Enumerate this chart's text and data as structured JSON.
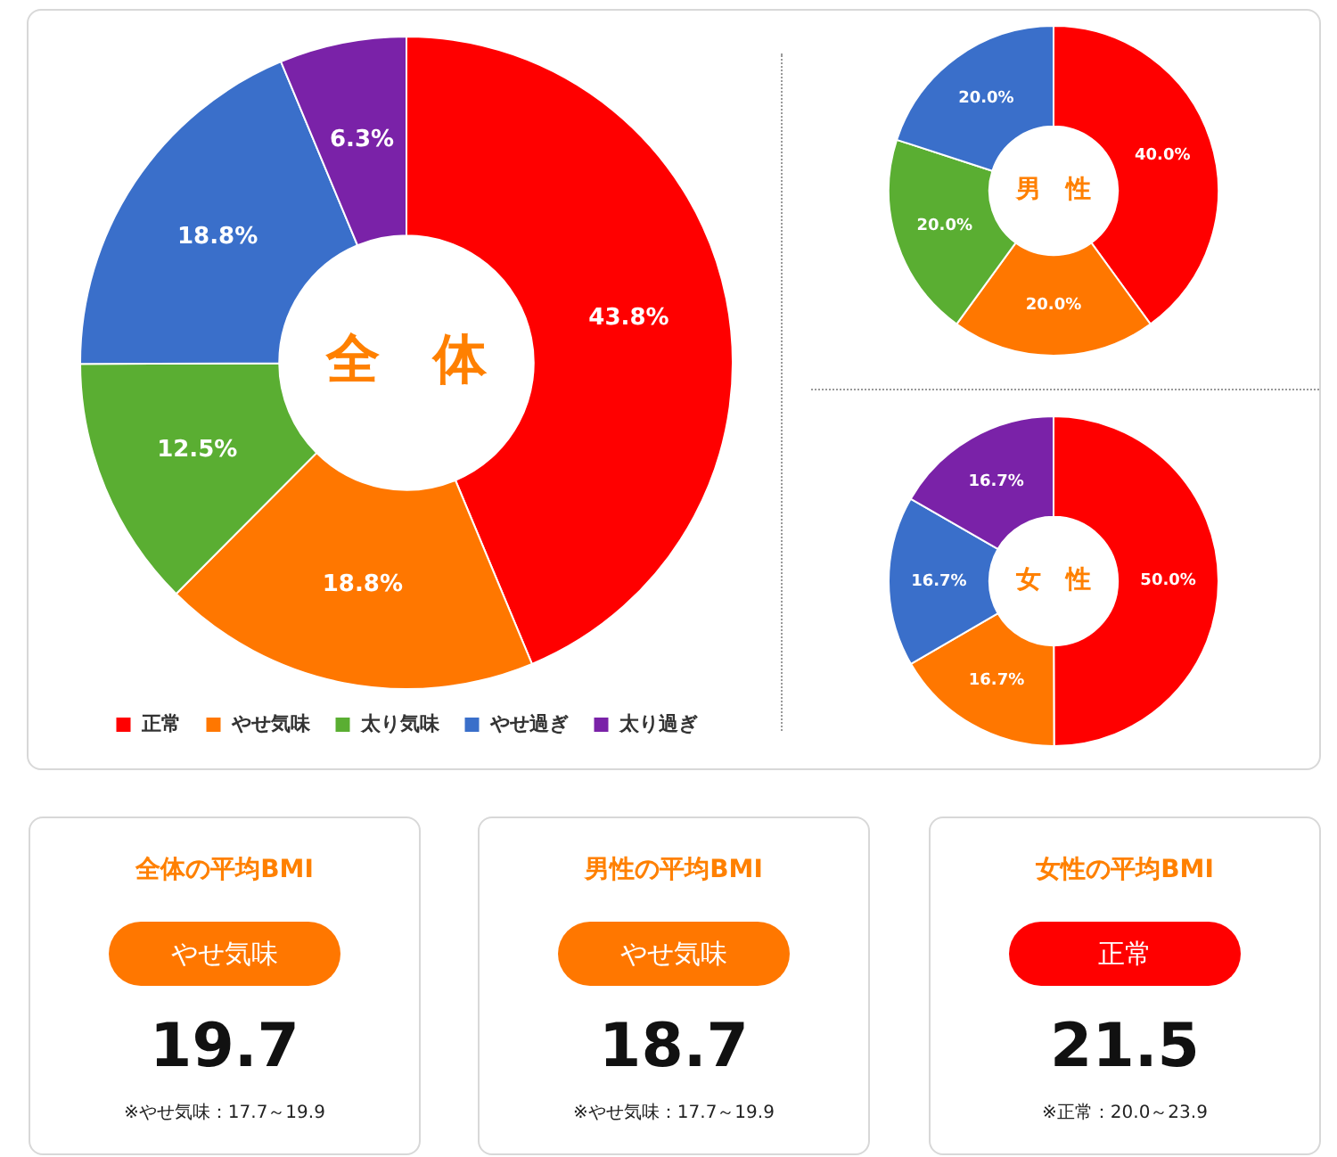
{
  "chart_data": [
    {
      "type": "donut",
      "title": "全　体",
      "categories": [
        "正常",
        "やせ気味",
        "太り気味",
        "やせ過ぎ",
        "太り過ぎ"
      ],
      "values": [
        43.8,
        18.8,
        12.5,
        18.8,
        6.3
      ],
      "colors": [
        "#ff0000",
        "#ff7700",
        "#5aae32",
        "#3a6fca",
        "#7a22a8"
      ],
      "value_labels": [
        "43.8%",
        "18.8%",
        "12.5%",
        "18.8%",
        "6.3%"
      ],
      "legend": "bottom"
    },
    {
      "type": "donut",
      "title": "男　性",
      "categories": [
        null,
        null,
        null,
        null
      ],
      "values": [
        40.0,
        20.0,
        20.0,
        20.0
      ],
      "colors": [
        "#ff0000",
        "#ff7700",
        "#5aae32",
        "#3a6fca"
      ],
      "value_labels": [
        "40.0%",
        "20.0%",
        "20.0%",
        "20.0%"
      ]
    },
    {
      "type": "donut",
      "title": "女　性",
      "categories": [
        null,
        null,
        null,
        null
      ],
      "values": [
        50.0,
        16.7,
        16.7,
        16.7
      ],
      "colors": [
        "#ff0000",
        "#ff7700",
        "#3a6fca",
        "#7a22a8"
      ],
      "value_labels": [
        "50.0%",
        "16.7%",
        "16.7%",
        "16.7%"
      ]
    },
    {
      "type": "other",
      "title": "全体の平均BMI",
      "color": "#ff7700",
      "annotations": [
        "やせ気味",
        "19.7",
        "※やせ気味：17.7～19.9"
      ]
    },
    {
      "type": "other",
      "title": "男性の平均BMI",
      "color": "#ff7700",
      "annotations": [
        "やせ気味",
        "18.7",
        "※やせ気味：17.7～19.9"
      ]
    },
    {
      "type": "other",
      "title": "女性の平均BMI",
      "color": "#ff0000",
      "annotations": [
        "正常",
        "21.5",
        "※正常：20.0～23.9"
      ]
    }
  ]
}
